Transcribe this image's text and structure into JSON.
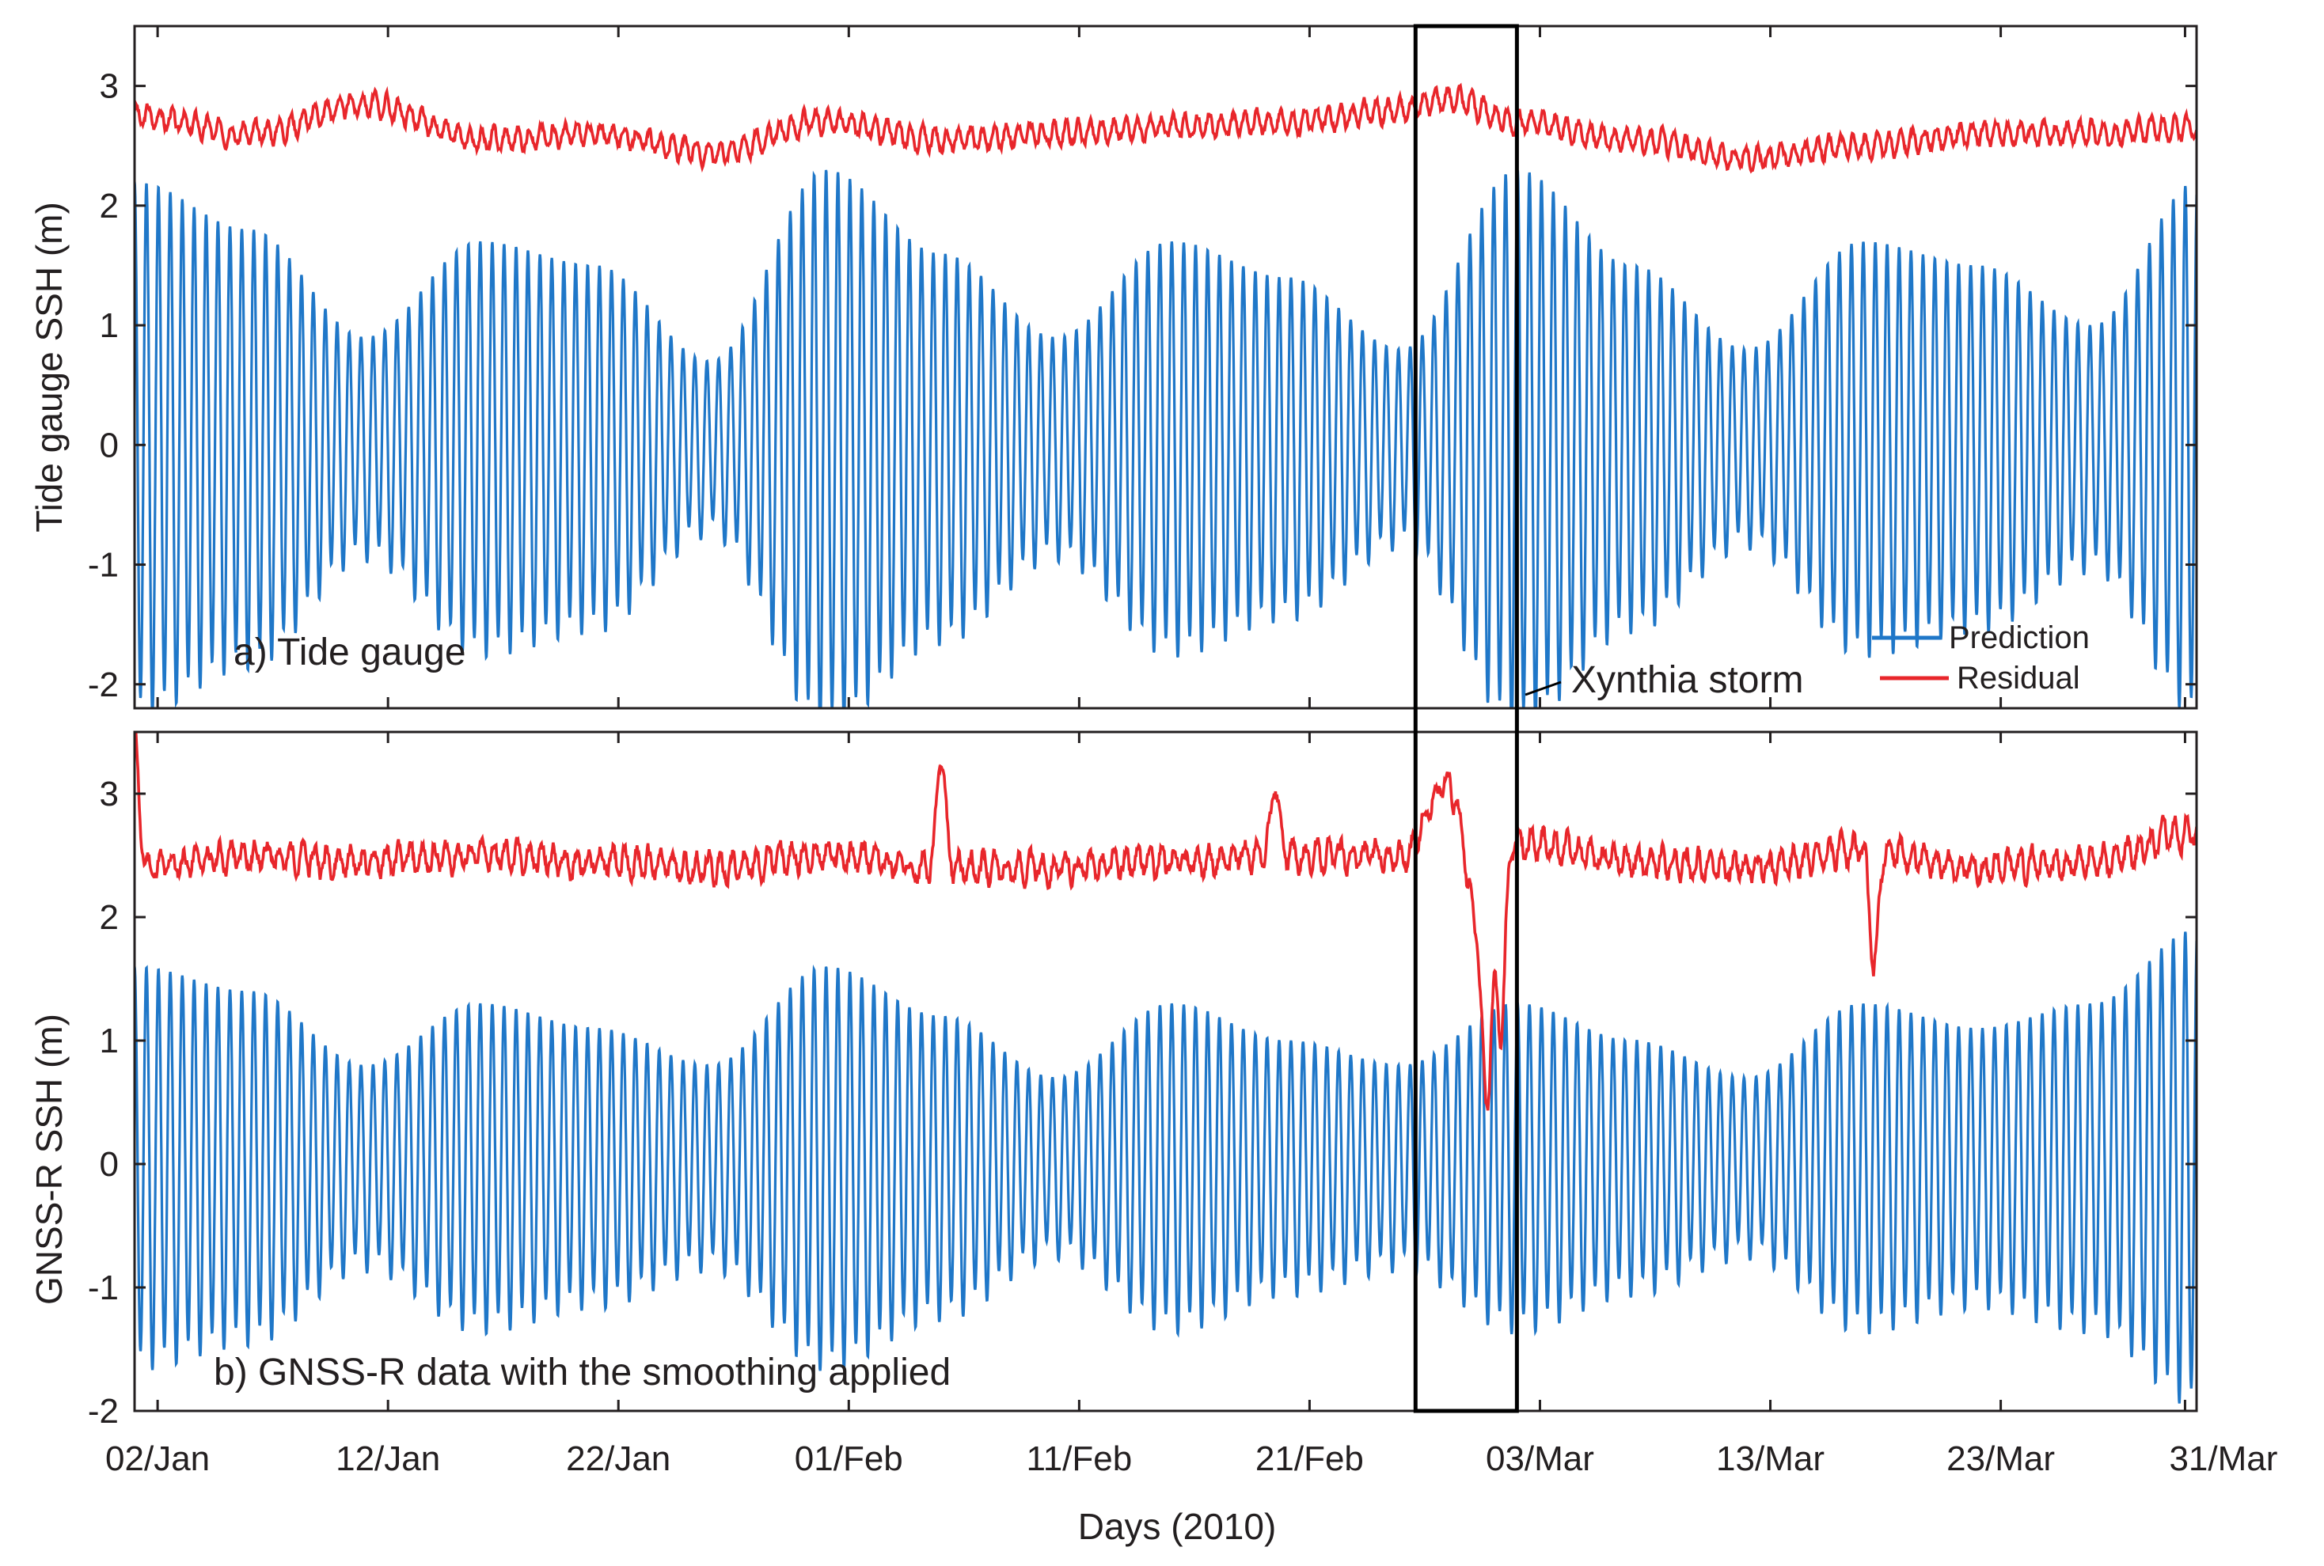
{
  "chart_data": [
    {
      "type": "line",
      "panel_label": "a) Tide gauge",
      "ylabel": "Tide gauge SSH (m)",
      "ylim": [
        -2.2,
        3.5
      ],
      "yticks": [
        "-2",
        "-1",
        "0",
        "1",
        "2",
        "3"
      ],
      "ytick_values": [
        -2,
        -1,
        0,
        1,
        2,
        3
      ],
      "xlim_days": [
        0,
        89.5
      ],
      "grid": false,
      "legend": {
        "placement": "bottom-right",
        "entries": [
          {
            "name": "Prediction",
            "color": "#1f77c8"
          },
          {
            "name": "Residual",
            "color": "#e8262b"
          }
        ]
      },
      "series": [
        {
          "name": "Prediction",
          "color": "#1f77c8",
          "description": "semi-diurnal tide, period 0.5175 days",
          "envelope_days": [
            0,
            5,
            10,
            15,
            20,
            25,
            30,
            35,
            40,
            45,
            50,
            55,
            60,
            65,
            70,
            75,
            80,
            85,
            89.5
          ],
          "envelope_amplitude": [
            2.2,
            1.8,
            0.9,
            1.7,
            1.5,
            0.7,
            2.3,
            1.6,
            0.9,
            1.7,
            1.4,
            0.8,
            2.3,
            1.5,
            0.8,
            1.7,
            1.5,
            1.0,
            2.2
          ]
        },
        {
          "name": "Residual",
          "color": "#e8262b",
          "description": "non-tidal residual offset by +2.6 m",
          "baseline_days": [
            0,
            5,
            10,
            15,
            20,
            25,
            30,
            35,
            40,
            45,
            50,
            55,
            57,
            60,
            65,
            70,
            75,
            80,
            85,
            89.5
          ],
          "baseline_values": [
            2.75,
            2.6,
            2.85,
            2.55,
            2.6,
            2.45,
            2.7,
            2.55,
            2.6,
            2.65,
            2.7,
            2.8,
            2.9,
            2.7,
            2.55,
            2.4,
            2.5,
            2.6,
            2.6,
            2.65
          ]
        }
      ]
    },
    {
      "type": "line",
      "panel_label": "b) GNSS-R data with the smoothing applied",
      "ylabel": "GNSS-R SSH (m)",
      "ylim": [
        -2.0,
        3.5
      ],
      "yticks": [
        "-2",
        "-1",
        "0",
        "1",
        "2",
        "3"
      ],
      "ytick_values": [
        -2,
        -1,
        0,
        1,
        2,
        3
      ],
      "xlim_days": [
        0,
        89.5
      ],
      "grid": false,
      "series": [
        {
          "name": "Prediction",
          "color": "#1f77c8",
          "envelope_days": [
            0,
            5,
            10,
            15,
            20,
            25,
            30,
            35,
            40,
            45,
            50,
            55,
            60,
            65,
            70,
            75,
            80,
            85,
            89.5
          ],
          "envelope_amplitude": [
            1.6,
            1.4,
            0.8,
            1.3,
            1.1,
            0.8,
            1.6,
            1.2,
            0.7,
            1.3,
            1.0,
            0.8,
            1.3,
            1.0,
            0.7,
            1.3,
            1.1,
            1.3,
            1.9
          ]
        },
        {
          "name": "Residual",
          "color": "#e8262b",
          "baseline_days": [
            0,
            5,
            10,
            15,
            20,
            25,
            30,
            35,
            40,
            45,
            50,
            55,
            57,
            58.5,
            60,
            65,
            70,
            75,
            80,
            85,
            89.5
          ],
          "baseline_values": [
            2.4,
            2.5,
            2.45,
            2.5,
            2.45,
            2.4,
            2.5,
            2.4,
            2.4,
            2.45,
            2.5,
            2.5,
            3.1,
            1.8,
            2.6,
            2.45,
            2.4,
            2.55,
            2.4,
            2.45,
            2.7
          ],
          "spikes": [
            {
              "day": 0.0,
              "value": 3.45
            },
            {
              "day": 35.0,
              "value": 3.3
            },
            {
              "day": 49.5,
              "value": 3.05
            },
            {
              "day": 58.7,
              "value": 0.5
            },
            {
              "day": 59.3,
              "value": 1.05
            },
            {
              "day": 75.5,
              "value": 1.55
            }
          ]
        }
      ]
    }
  ],
  "x_axis": {
    "title": "Days (2010)",
    "tick_labels": [
      "02/Jan",
      "12/Jan",
      "22/Jan",
      "01/Feb",
      "11/Feb",
      "21/Feb",
      "03/Mar",
      "13/Mar",
      "23/Mar",
      "31/Mar"
    ],
    "tick_days": [
      1,
      11,
      21,
      31,
      41,
      51,
      61,
      71,
      81,
      89
    ]
  },
  "annotation": {
    "text": "Xynthia storm",
    "box_days": [
      55.6,
      60.0
    ]
  },
  "colors": {
    "prediction": "#1f77c8",
    "residual": "#e8262b",
    "axes": "#231f20",
    "box": "#000000"
  }
}
